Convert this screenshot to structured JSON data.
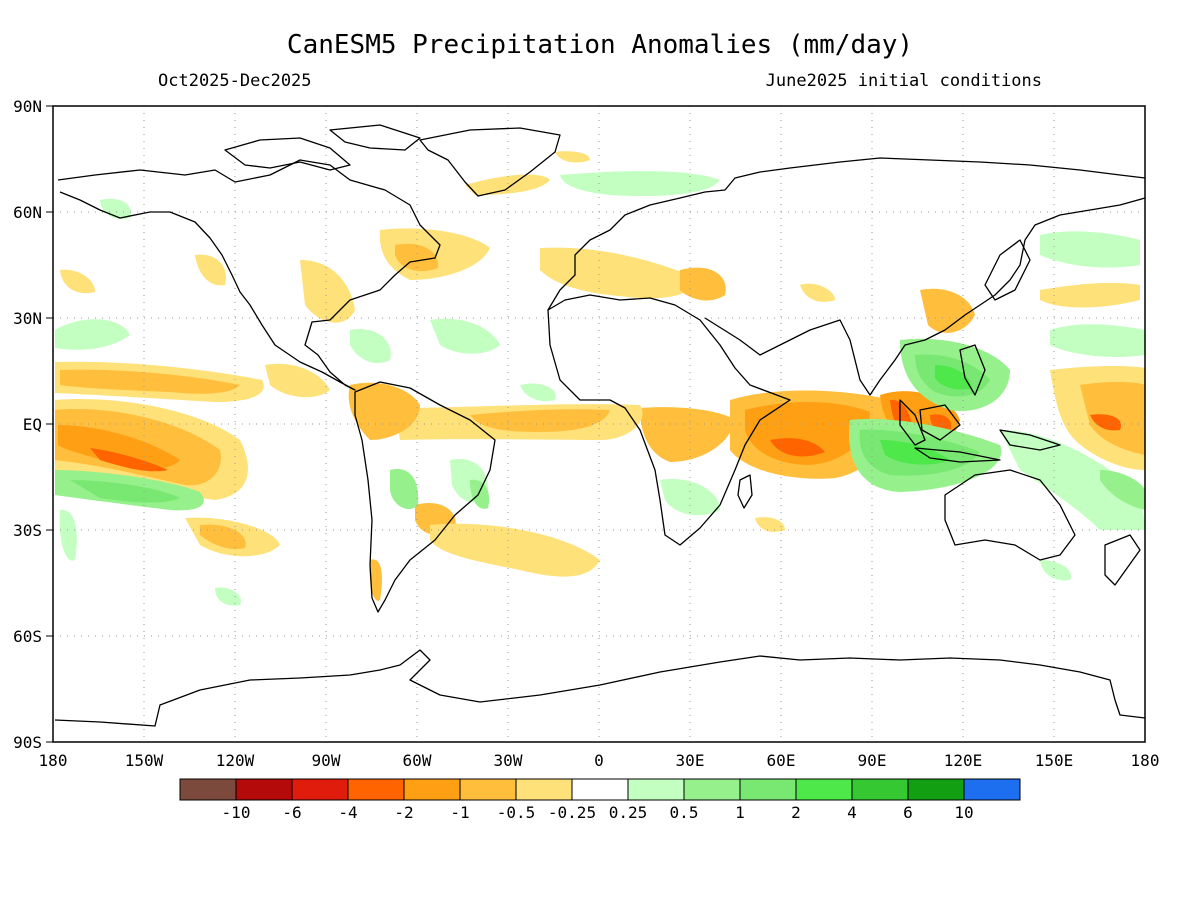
{
  "title": "CanESM5 Precipitation Anomalies (mm/day)",
  "period": "Oct2025-Dec2025",
  "init": "June2025 initial conditions",
  "lat_labels": [
    "90N",
    "60N",
    "30N",
    "EQ",
    "30S",
    "60S",
    "90S"
  ],
  "lon_labels": [
    "180",
    "150W",
    "120W",
    "90W",
    "60W",
    "30W",
    "0",
    "30E",
    "60E",
    "90E",
    "120E",
    "150E",
    "180"
  ],
  "legend": {
    "colors": [
      "#7b4a3c",
      "#b40a0a",
      "#e01c0c",
      "#ff6400",
      "#ffa014",
      "#ffbe3c",
      "#ffe17a",
      "#ffffff",
      "#c2ffc0",
      "#96f08c",
      "#78e872",
      "#4ee84a",
      "#36c832",
      "#12a012",
      "#1e6ef0"
    ],
    "labels": [
      "-10",
      "-6",
      "-4",
      "-2",
      "-1",
      "-0.5",
      "-0.25",
      "0.25",
      "0.5",
      "1",
      "2",
      "4",
      "6",
      "10"
    ]
  }
}
